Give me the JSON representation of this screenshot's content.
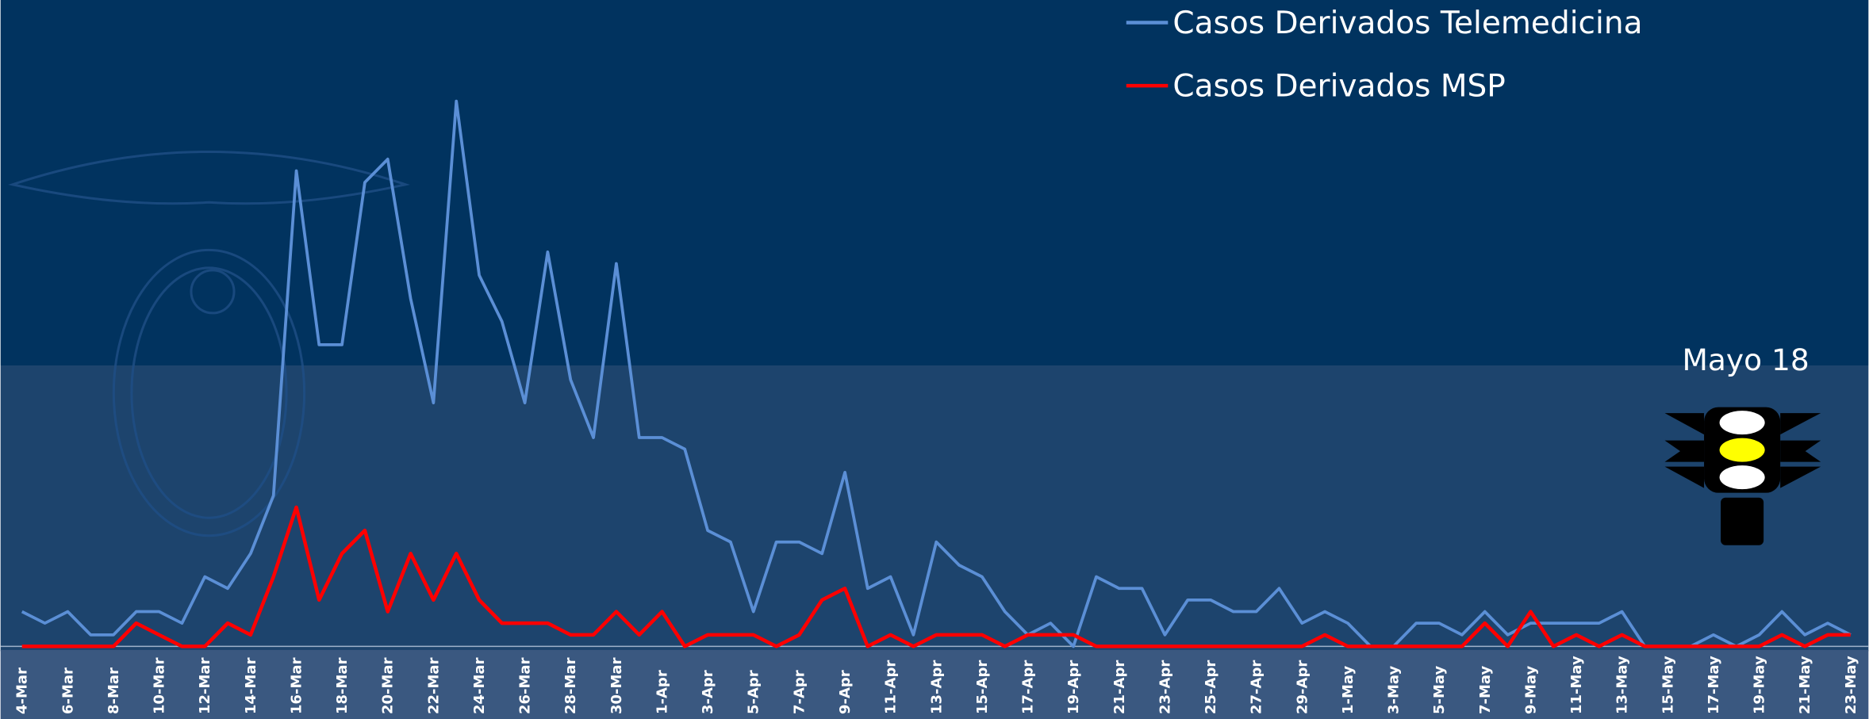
{
  "chart_data": {
    "type": "line",
    "categories": [
      "4-Mar",
      null,
      "6-Mar",
      null,
      "8-Mar",
      null,
      "10-Mar",
      null,
      "12-Mar",
      null,
      "14-Mar",
      null,
      "16-Mar",
      null,
      "18-Mar",
      null,
      "20-Mar",
      null,
      "22-Mar",
      null,
      "24-Mar",
      null,
      "26-Mar",
      null,
      "28-Mar",
      null,
      "30-Mar",
      null,
      "1-Apr",
      null,
      "3-Apr",
      null,
      "5-Apr",
      null,
      "7-Apr",
      null,
      "9-Apr",
      null,
      "11-Apr",
      null,
      "13-Apr",
      null,
      "15-Apr",
      null,
      "17-Apr",
      null,
      "19-Apr",
      null,
      "21-Apr",
      null,
      "23-Apr",
      null,
      "25-Apr",
      null,
      "27-Apr",
      null,
      "29-Apr",
      null,
      "1-May",
      null,
      "3-May",
      null,
      "5-May",
      null,
      "7-May",
      null,
      "9-May",
      null,
      "11-May",
      null,
      "13-May",
      null,
      "15-May",
      null,
      "17-May",
      null,
      "19-May",
      null,
      "21-May",
      null,
      "23-May"
    ],
    "series": [
      {
        "name": "Casos Derivados Telemedicina",
        "color": "#5b8fd6",
        "values": [
          3,
          2,
          3,
          1,
          1,
          3,
          3,
          2,
          6,
          5,
          8,
          13,
          41,
          26,
          26,
          40,
          42,
          30,
          21,
          47,
          32,
          28,
          21,
          34,
          23,
          18,
          33,
          18,
          18,
          17,
          10,
          9,
          3,
          9,
          9,
          8,
          15,
          5,
          6,
          1,
          9,
          7,
          6,
          3,
          1,
          2,
          0,
          6,
          5,
          5,
          1,
          4,
          4,
          3,
          3,
          5,
          2,
          3,
          2,
          0,
          0,
          2,
          2,
          1,
          3,
          1,
          2,
          2,
          2,
          2,
          3,
          0,
          0,
          0,
          1,
          0,
          1,
          3,
          1,
          2,
          1
        ]
      },
      {
        "name": "Casos Derivados MSP",
        "color": "#ff0000",
        "values": [
          0,
          0,
          0,
          0,
          0,
          2,
          1,
          0,
          0,
          2,
          1,
          6,
          12,
          4,
          8,
          10,
          3,
          8,
          4,
          8,
          4,
          2,
          2,
          2,
          1,
          1,
          3,
          1,
          3,
          0,
          1,
          1,
          1,
          0,
          1,
          4,
          5,
          0,
          1,
          0,
          1,
          1,
          1,
          0,
          1,
          1,
          1,
          0,
          0,
          0,
          0,
          0,
          0,
          0,
          0,
          0,
          0,
          1,
          0,
          0,
          0,
          0,
          0,
          0,
          2,
          0,
          3,
          0,
          1,
          0,
          1,
          0,
          0,
          0,
          0,
          0,
          0,
          1,
          0,
          1,
          1
        ]
      }
    ],
    "annotations": [
      "Mayo 18"
    ]
  }
}
